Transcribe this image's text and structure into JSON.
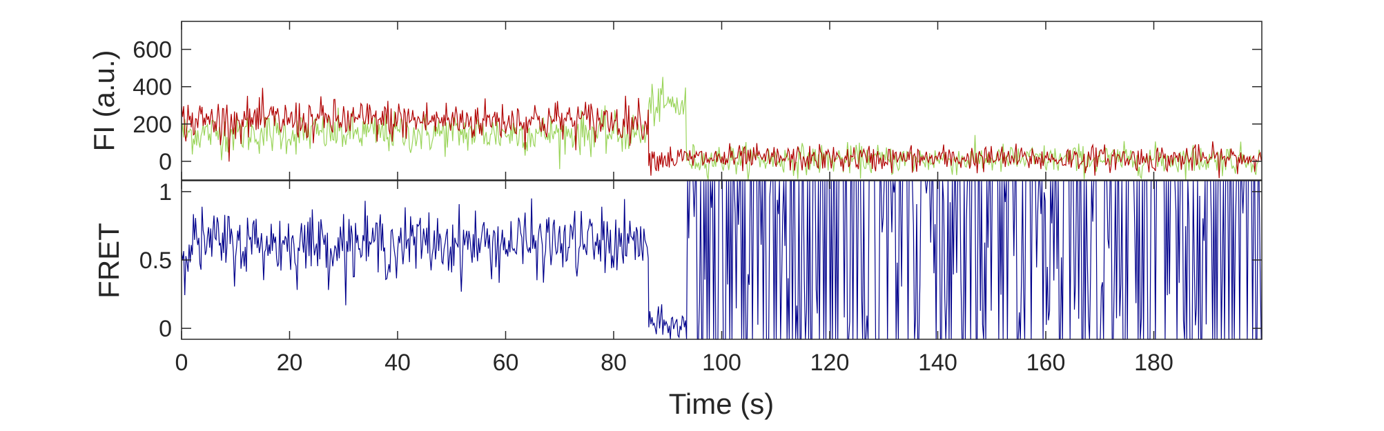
{
  "chart_data": [
    {
      "type": "line",
      "ylabel": "FI (a.u.)",
      "xlim": [
        0,
        200
      ],
      "ylim": [
        -100,
        750
      ],
      "yticks": [
        "0",
        "200",
        "400",
        "600"
      ],
      "grid": false,
      "series": [
        {
          "color": "#9ad45a",
          "segments": [
            {
              "x_start": 0,
              "x_end": 86.5,
              "mean": 150,
              "noise": 55
            },
            {
              "x_start": 86.5,
              "x_end": 93.5,
              "mean": 300,
              "noise": 55
            },
            {
              "x_start": 93.5,
              "x_end": 200,
              "mean": 10,
              "noise": 40
            }
          ]
        },
        {
          "color": "#b00000",
          "segments": [
            {
              "x_start": 0,
              "x_end": 86.5,
              "mean": 220,
              "noise": 55
            },
            {
              "x_start": 86.5,
              "x_end": 200,
              "mean": 15,
              "noise": 35
            }
          ]
        }
      ]
    },
    {
      "type": "line",
      "xlabel": "Time (s)",
      "ylabel": "FRET",
      "xlim": [
        0,
        200
      ],
      "ylim": [
        -0.08,
        1.08
      ],
      "xticks": [
        "0",
        "20",
        "40",
        "60",
        "80",
        "100",
        "120",
        "140",
        "160",
        "180"
      ],
      "yticks": [
        "0",
        "0.5",
        "1"
      ],
      "grid": false,
      "series": [
        {
          "color": "#00008b",
          "segments": [
            {
              "x_start": 0,
              "x_end": 86.5,
              "mean": 0.62,
              "noise": 0.12
            },
            {
              "x_start": 86.5,
              "x_end": 93.5,
              "mean": 0.02,
              "noise": 0.06
            },
            {
              "x_start": 93.5,
              "x_end": 200,
              "mean": 0.5,
              "noise": 0.55
            }
          ]
        }
      ]
    }
  ]
}
